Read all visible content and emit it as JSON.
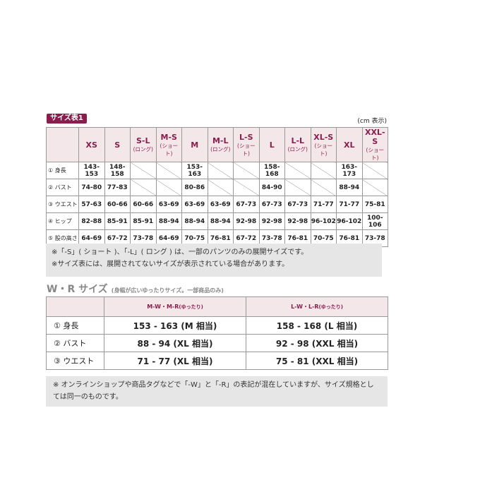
{
  "size_table_1": {
    "badge": "サイズ表1",
    "unit": "(cm 表示)",
    "headers": [
      {
        "label": "XS"
      },
      {
        "label": "S"
      },
      {
        "label": "S-L",
        "sub": "(ロング)"
      },
      {
        "label": "M-S",
        "sub": "(ショート)"
      },
      {
        "label": "M"
      },
      {
        "label": "M-L",
        "sub": "(ロング)"
      },
      {
        "label": "L-S",
        "sub": "(ショート)"
      },
      {
        "label": "L"
      },
      {
        "label": "L-L",
        "sub": "(ロング)"
      },
      {
        "label": "XL-S",
        "sub": "(ショート)"
      },
      {
        "label": "XL"
      },
      {
        "label": "XXL-S",
        "sub": "(ショート)"
      }
    ],
    "rows": [
      {
        "label": "① 身長",
        "cells": [
          "143-153",
          "148-158",
          null,
          null,
          "153-163",
          null,
          null,
          "158-168",
          null,
          null,
          "163-173",
          null
        ]
      },
      {
        "label": "② バスト",
        "cells": [
          "74-80",
          "77-83",
          null,
          null,
          "80-86",
          null,
          null,
          "84-90",
          null,
          null,
          "88-94",
          null
        ]
      },
      {
        "label": "③ ウエスト",
        "cells": [
          "57-63",
          "60-66",
          "60-66",
          "63-69",
          "63-69",
          "63-69",
          "67-73",
          "67-73",
          "67-73",
          "71-77",
          "71-77",
          "75-81"
        ]
      },
      {
        "label": "④ ヒップ",
        "cells": [
          "82-88",
          "85-91",
          "85-91",
          "88-94",
          "88-94",
          "88-94",
          "92-98",
          "92-98",
          "92-98",
          "96-102",
          "96-102",
          "100-106"
        ]
      },
      {
        "label": "⑤ 股の高さ",
        "cells": [
          "64-69",
          "67-72",
          "73-78",
          "64-69",
          "70-75",
          "76-81",
          "67-72",
          "73-78",
          "76-81",
          "70-75",
          "76-81",
          "73-78"
        ]
      }
    ],
    "notes": [
      "※「-S」( ショート )、「-L」( ロング ) は、一部のパンツのみの展開サイズです。",
      "※サイズ表には、展開されてないサイズが表示されている場合があります。"
    ]
  },
  "wr_table": {
    "title": "W・R サイズ",
    "subtitle": "(身幅が広いゆったりサイズ。一部商品のみ)",
    "headers": [
      {
        "label": "M-W・M-R",
        "sub": "(ゆったり)"
      },
      {
        "label": "L-W・L-R",
        "sub": "(ゆったり)"
      }
    ],
    "rows": [
      {
        "label": "① 身長",
        "cells": [
          "153 - 163 (M 相当)",
          "158 - 168 (L 相当)"
        ]
      },
      {
        "label": "② バスト",
        "cells": [
          "88 - 94 (XL 相当)",
          "92 - 98 (XXL 相当)"
        ]
      },
      {
        "label": "③ ウエスト",
        "cells": [
          "71 - 77 (XL 相当)",
          "75 - 81 (XXL 相当)"
        ]
      }
    ],
    "note": "※ オンラインショップや商品タグなどで「-W」と「-R」の表記が混在していますが、サイズ規格としては同一のものです。"
  }
}
